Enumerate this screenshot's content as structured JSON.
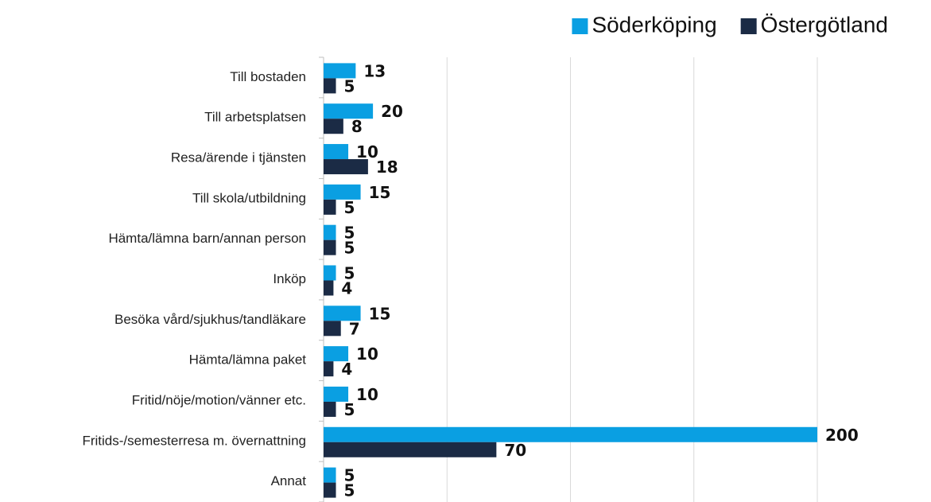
{
  "chart_data": {
    "type": "barh",
    "categories": [
      "Till bostaden",
      "Till arbetsplatsen",
      "Resa/ärende i tjänsten",
      "Till skola/utbildning",
      "Hämta/lämna barn/annan person",
      "Inköp",
      "Besöka vård/sjukhus/tandläkare",
      "Hämta/lämna paket",
      "Fritid/nöje/motion/vänner etc.",
      "Fritids-/semesterresa m. övernattning",
      "Annat"
    ],
    "series": [
      {
        "name": "Söderköping",
        "color": "#0a9fe2",
        "values": [
          13,
          20,
          10,
          15,
          5,
          5,
          15,
          10,
          10,
          200,
          5
        ]
      },
      {
        "name": "Östergötland",
        "color": "#1b2b45",
        "values": [
          5,
          8,
          18,
          5,
          5,
          4,
          7,
          4,
          5,
          70,
          5
        ]
      }
    ],
    "xlim": [
      0,
      200
    ],
    "xticks": [
      50,
      100,
      150,
      200
    ],
    "grid": true,
    "legend": "top-right"
  }
}
